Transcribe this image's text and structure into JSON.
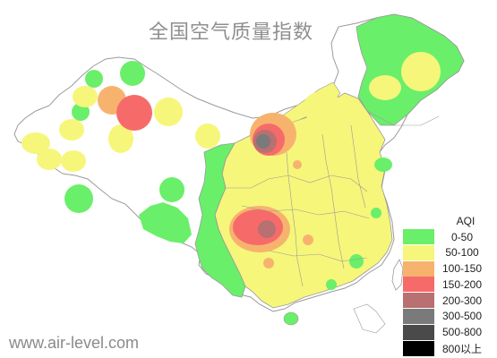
{
  "map": {
    "title": "全国空气质量指数",
    "source": "www.air-level.com",
    "legend": {
      "title": "AQI",
      "items": [
        {
          "label": "0-50",
          "color": "#6aef6a"
        },
        {
          "label": "50-100",
          "color": "#f6f67a"
        },
        {
          "label": "100-150",
          "color": "#f7b36e"
        },
        {
          "label": "150-200",
          "color": "#f76a6a"
        },
        {
          "label": "200-300",
          "color": "#b87070"
        },
        {
          "label": "300-500",
          "color": "#7a7a7a"
        },
        {
          "label": "500-800",
          "color": "#4a4a4a"
        },
        {
          "label": "800以上",
          "color": "#000000"
        }
      ]
    }
  }
}
